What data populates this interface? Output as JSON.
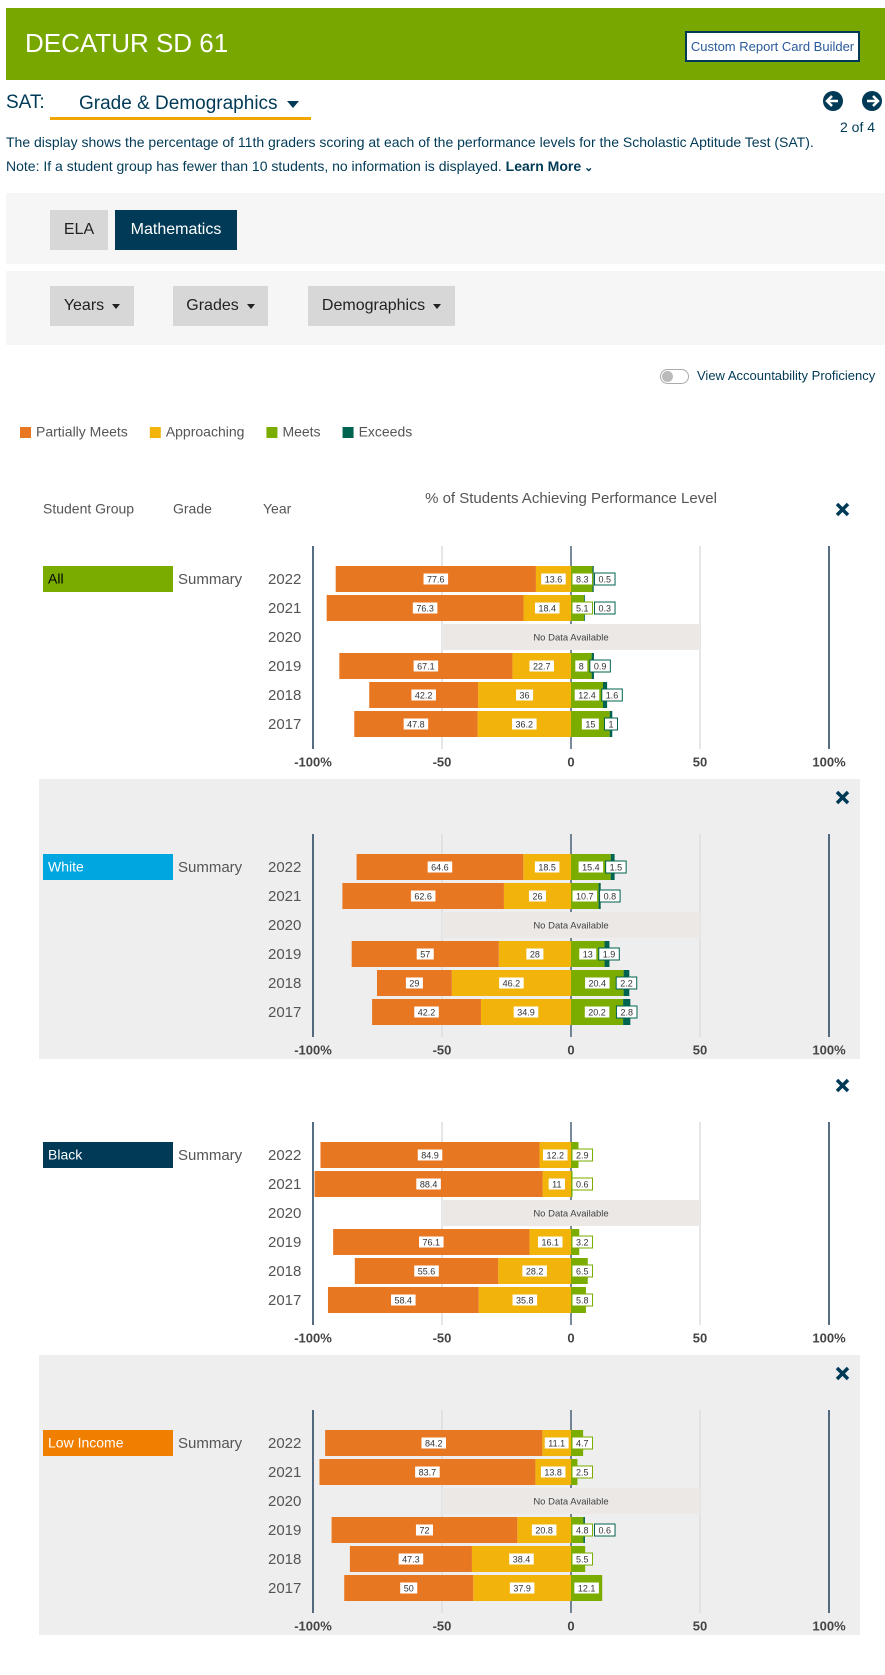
{
  "header": {
    "title": "DECATUR SD 61",
    "button": "Custom Report Card Builder"
  },
  "selector": {
    "label": "SAT:",
    "value": "Grade & Demographics",
    "page": "2 of 4"
  },
  "description": [
    "The display shows the percentage of 11th graders scoring at each of the performance levels for the Scholastic Aptitude Test (SAT).",
    "Note: If a student group has fewer than 10 students, no information is displayed."
  ],
  "learn_more": "Learn More",
  "subjects": [
    "ELA",
    "Mathematics"
  ],
  "filters": [
    "Years",
    "Grades",
    "Demographics"
  ],
  "toggle": "View Accountability Proficiency",
  "table_headers": [
    "Student Group",
    "Grade",
    "Year"
  ],
  "no_data": "No Data Available",
  "chart_data": [
    {
      "type": "bar",
      "title": "% of Students Achieving Performance Level",
      "group": "All",
      "group_color": "#7aac00",
      "grade": "Summary",
      "categories": [
        "2022",
        "2021",
        "2020",
        "2019",
        "2018",
        "2017"
      ],
      "series": [
        {
          "name": "Partially Meets",
          "color": "#e87722",
          "values": [
            77.6,
            76.3,
            null,
            67.1,
            42.2,
            47.8
          ]
        },
        {
          "name": "Approaching",
          "color": "#f2b40b",
          "values": [
            13.6,
            18.4,
            null,
            22.7,
            36,
            36.2
          ]
        },
        {
          "name": "Meets",
          "color": "#7aad00",
          "values": [
            8.3,
            5.1,
            null,
            8,
            12.4,
            15
          ]
        },
        {
          "name": "Exceeds",
          "color": "#00634f",
          "values": [
            0.5,
            0.3,
            null,
            0.9,
            1.6,
            1
          ]
        }
      ],
      "xlim": [
        -100,
        100
      ],
      "xticks": [
        {
          "value": -100,
          "label": "-100%"
        },
        -50,
        0,
        50,
        {
          "value": 100,
          "label": "100%"
        }
      ]
    },
    {
      "type": "bar",
      "group": "White",
      "group_color": "#00a6e0",
      "grade": "Summary",
      "categories": [
        "2022",
        "2021",
        "2020",
        "2019",
        "2018",
        "2017"
      ],
      "series": [
        {
          "name": "Partially Meets",
          "color": "#e87722",
          "values": [
            64.6,
            62.6,
            null,
            57,
            29,
            42.2
          ]
        },
        {
          "name": "Approaching",
          "color": "#f2b40b",
          "values": [
            18.5,
            26,
            null,
            28,
            46.2,
            34.9
          ]
        },
        {
          "name": "Meets",
          "color": "#7aad00",
          "values": [
            15.4,
            10.7,
            null,
            13,
            20.4,
            20.2
          ]
        },
        {
          "name": "Exceeds",
          "color": "#00634f",
          "values": [
            1.5,
            0.8,
            null,
            1.9,
            2.2,
            2.8
          ]
        }
      ],
      "xlim": [
        -100,
        100
      ],
      "xticks": [
        {
          "value": -100,
          "label": "-100%"
        },
        -50,
        0,
        50,
        {
          "value": 100,
          "label": "100%"
        }
      ]
    },
    {
      "type": "bar",
      "group": "Black",
      "group_color": "#003a57",
      "grade": "Summary",
      "categories": [
        "2022",
        "2021",
        "2020",
        "2019",
        "2018",
        "2017"
      ],
      "series": [
        {
          "name": "Partially Meets",
          "color": "#e87722",
          "values": [
            84.9,
            88.4,
            null,
            76.1,
            55.6,
            58.4
          ]
        },
        {
          "name": "Approaching",
          "color": "#f2b40b",
          "values": [
            12.2,
            11,
            null,
            16.1,
            28.2,
            35.8
          ]
        },
        {
          "name": "Meets",
          "color": "#7aad00",
          "values": [
            2.9,
            0.6,
            null,
            3.2,
            6.5,
            5.8
          ]
        },
        {
          "name": "Exceeds",
          "color": "#00634f",
          "values": [
            null,
            null,
            null,
            null,
            null,
            null
          ]
        }
      ],
      "xlim": [
        -100,
        100
      ],
      "xticks": [
        {
          "value": -100,
          "label": "-100%"
        },
        -50,
        0,
        50,
        {
          "value": 100,
          "label": "100%"
        }
      ]
    },
    {
      "type": "bar",
      "group": "Low Income",
      "group_color": "#f07f00",
      "grade": "Summary",
      "categories": [
        "2022",
        "2021",
        "2020",
        "2019",
        "2018",
        "2017"
      ],
      "series": [
        {
          "name": "Partially Meets",
          "color": "#e87722",
          "values": [
            84.2,
            83.7,
            null,
            72,
            47.3,
            50
          ]
        },
        {
          "name": "Approaching",
          "color": "#f2b40b",
          "values": [
            11.1,
            13.8,
            null,
            20.8,
            38.4,
            37.9
          ]
        },
        {
          "name": "Meets",
          "color": "#7aad00",
          "values": [
            4.7,
            2.5,
            null,
            4.8,
            5.5,
            12.1
          ]
        },
        {
          "name": "Exceeds",
          "color": "#00634f",
          "values": [
            null,
            null,
            null,
            0.6,
            null,
            null
          ]
        }
      ],
      "xlim": [
        -100,
        100
      ],
      "xticks": [
        {
          "value": -100,
          "label": "-100%"
        },
        -50,
        0,
        50,
        {
          "value": 100,
          "label": "100%"
        }
      ]
    }
  ]
}
